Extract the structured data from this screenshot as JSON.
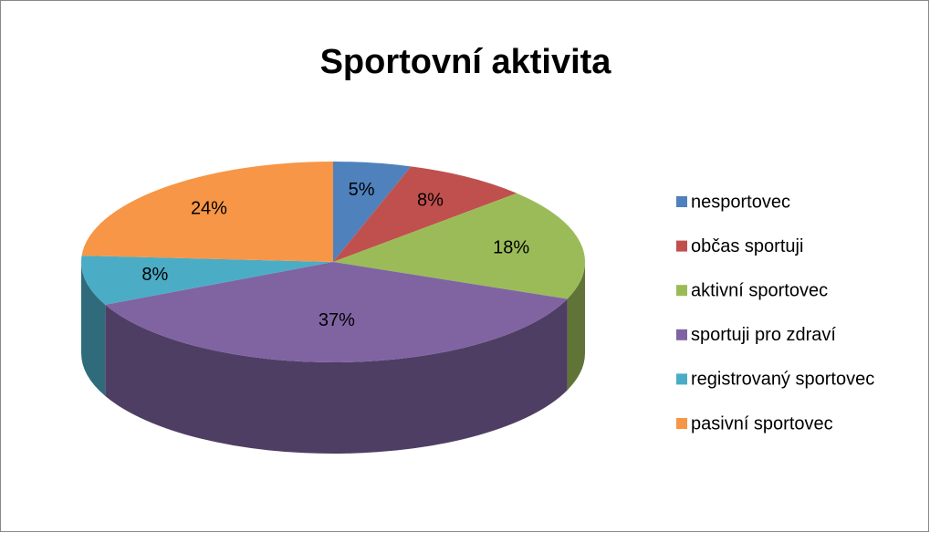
{
  "chart_data": {
    "type": "pie",
    "title": "Sportovní aktivita",
    "categories": [
      "nesportovec",
      "občas sportuji",
      "aktivní sportovec",
      "sportuji pro zdraví",
      "registrovaný sportovec",
      "pasivní sportovec"
    ],
    "values": [
      5,
      8,
      18,
      37,
      8,
      24
    ],
    "value_labels": [
      "5%",
      "8%",
      "18%",
      "37%",
      "8%",
      "24%"
    ],
    "colors": [
      "#4f81bd",
      "#c0504d",
      "#9bbb59",
      "#8064a2",
      "#4bacc6",
      "#f79646"
    ],
    "legend": "right"
  }
}
